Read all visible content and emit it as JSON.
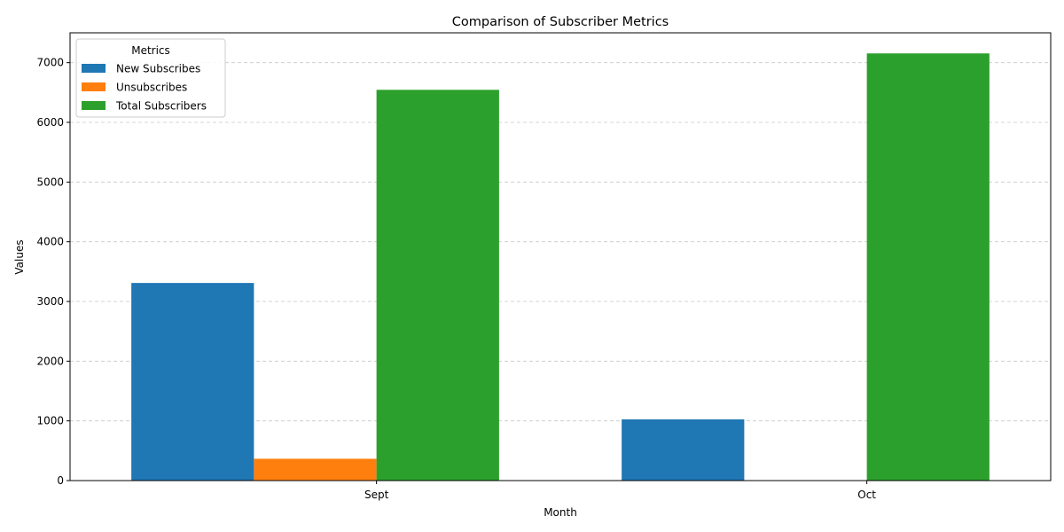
{
  "chart_data": {
    "type": "bar",
    "title": "Comparison of Subscriber Metrics",
    "xlabel": "Month",
    "ylabel": "Values",
    "categories": [
      "Sept",
      "Oct"
    ],
    "series": [
      {
        "name": "New Subscribes",
        "values": [
          3310,
          1025
        ],
        "color": "#1f77b4"
      },
      {
        "name": "Unsubscribes",
        "values": [
          365,
          0
        ],
        "color": "#ff7f0e"
      },
      {
        "name": "Total Subscribers",
        "values": [
          6545,
          7155
        ],
        "color": "#2ca02c"
      }
    ],
    "ylim": [
      0,
      7500
    ],
    "yticks": [
      0,
      1000,
      2000,
      3000,
      4000,
      5000,
      6000,
      7000
    ],
    "grid": "y-dashed",
    "legend": {
      "title": "Metrics",
      "placement": "top-left"
    }
  }
}
